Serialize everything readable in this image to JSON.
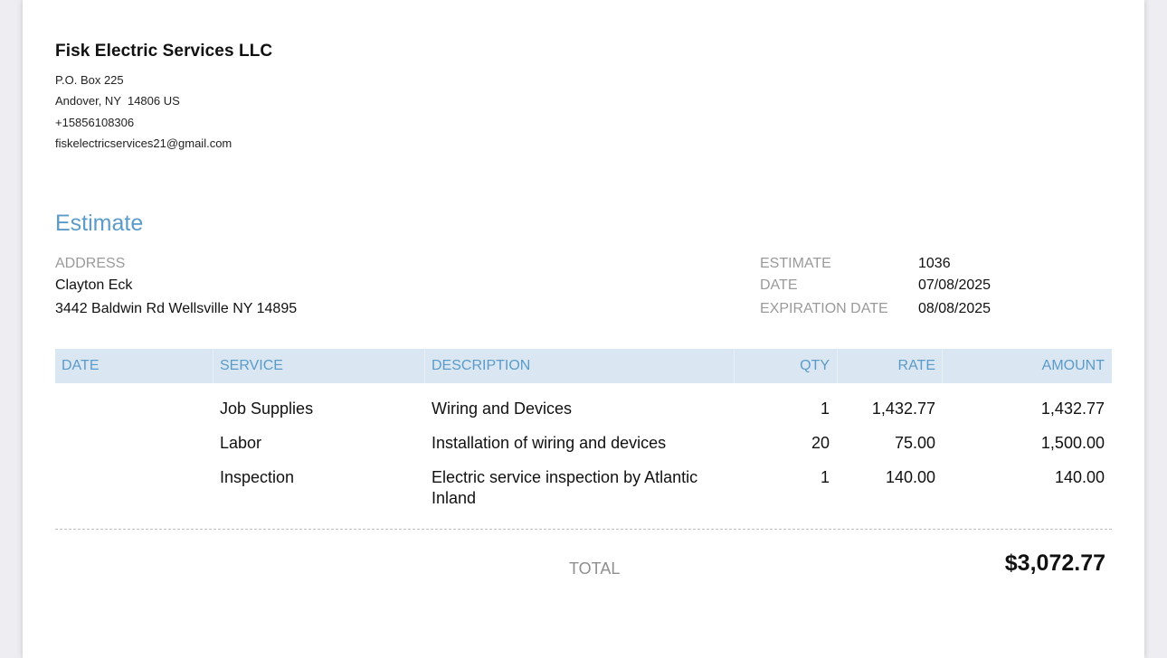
{
  "company": {
    "name": "Fisk Electric Services LLC",
    "address_line1": "P.O. Box 225",
    "address_line2": "Andover, NY  14806 US",
    "phone": "+15856108306",
    "email": "fiskelectricservices21@gmail.com"
  },
  "document": {
    "title": "Estimate"
  },
  "bill_to": {
    "label": "ADDRESS",
    "name": "Clayton Eck",
    "address": "3442 Baldwin Rd Wellsville NY 14895"
  },
  "meta": {
    "estimate_label": "ESTIMATE",
    "estimate_number": "1036",
    "date_label": "DATE",
    "date": "07/08/2025",
    "expiration_label": "EXPIRATION DATE",
    "expiration_date": "08/08/2025"
  },
  "table": {
    "columns": [
      "DATE",
      "SERVICE",
      "DESCRIPTION",
      "QTY",
      "RATE",
      "AMOUNT"
    ],
    "rows": [
      {
        "date": "",
        "service": "Job Supplies",
        "description": "Wiring and Devices",
        "qty": "1",
        "rate": "1,432.77",
        "amount": "1,432.77"
      },
      {
        "date": "",
        "service": "Labor",
        "description": "Installation of wiring and devices",
        "qty": "20",
        "rate": "75.00",
        "amount": "1,500.00"
      },
      {
        "date": "",
        "service": "Inspection",
        "description_line1": "Electric service inspection by Atlantic",
        "description_line2": "Inland",
        "qty": "1",
        "rate": "140.00",
        "amount": "140.00"
      }
    ]
  },
  "totals": {
    "label": "TOTAL",
    "value": "$3,072.77"
  },
  "colors": {
    "accent": "#5b9bc9",
    "header_bg": "#dae7f2",
    "label_grey": "#9a9a9a"
  }
}
